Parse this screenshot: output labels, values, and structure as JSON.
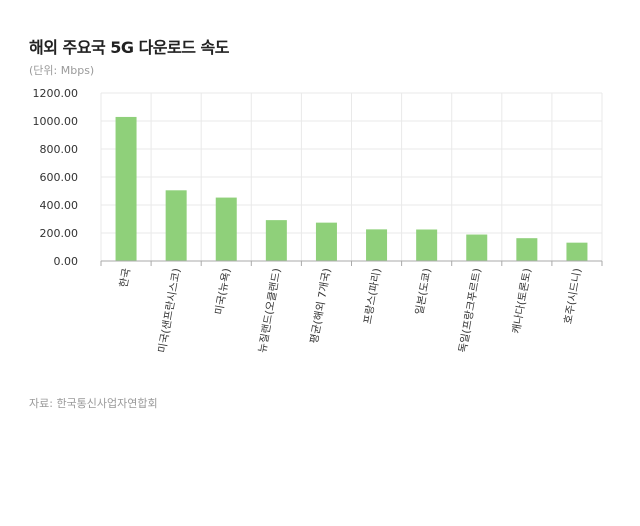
{
  "title": "해외 주요국 5G 다운로드 속도",
  "unit_label": "(단위: Mbps)",
  "source": "자료: 한국통신사업자연합회",
  "colors": {
    "bar": "#8fd07a",
    "grid": "#e9e9e9",
    "axis": "#aaaaaa"
  },
  "chart_data": {
    "type": "bar",
    "categories": [
      "한국",
      "미국(샌프란시스코)",
      "미국(뉴욕)",
      "뉴질랜드(오클랜드)",
      "평균(해외 7개국)",
      "프랑스(파리)",
      "일본(도쿄)",
      "독일(프랑크푸르트)",
      "캐나다(토론토)",
      "호주(시드니)"
    ],
    "values": [
      1029,
      505,
      453,
      292,
      274,
      226,
      225,
      189,
      163,
      131
    ],
    "yticks": [
      "0.00",
      "200.00",
      "400.00",
      "600.00",
      "800.00",
      "1000.00",
      "1200.00"
    ],
    "ylim": [
      0,
      1200
    ],
    "grid": true
  }
}
